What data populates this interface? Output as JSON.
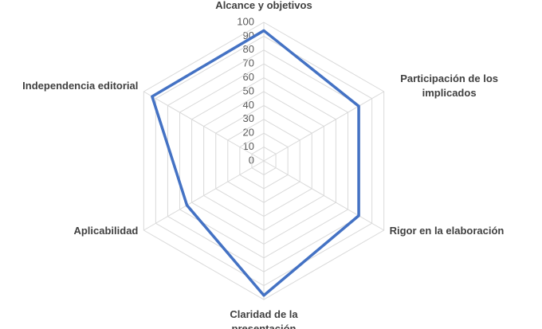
{
  "chart_data": {
    "type": "radar",
    "categories": [
      "Alcance y objetivos",
      "Participación de los implicados",
      "Rigor en la elaboración",
      "Claridad de la presentación",
      "Aplicabilidad",
      "Independencia editorial"
    ],
    "values": [
      94,
      79,
      79,
      97,
      64,
      93
    ],
    "color": "#4472c4",
    "ylim": [
      0,
      100
    ],
    "yticks": [
      0,
      10,
      20,
      30,
      40,
      50,
      60,
      70,
      80,
      90,
      100
    ],
    "grid": true
  }
}
